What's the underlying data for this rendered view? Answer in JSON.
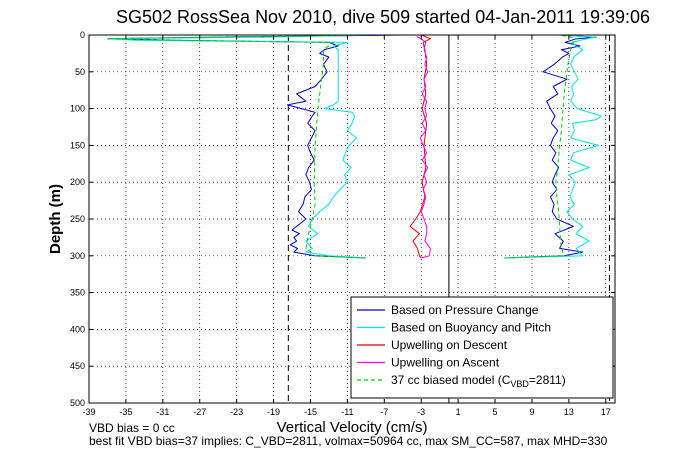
{
  "chart_data": {
    "type": "line",
    "title": "SG502 RossSea Nov 2010, dive 509 started 04-Jan-2011 19:39:06",
    "xlabel": "Vertical Velocity (cm/s)",
    "ylabel": "Depth (m)",
    "xlim": [
      -39,
      18
    ],
    "ylim": [
      0,
      500
    ],
    "y_reversed": true,
    "x_ticks": [
      -39,
      -35,
      -31,
      -27,
      -23,
      -19,
      -15,
      -11,
      -7,
      -3,
      1,
      5,
      9,
      13,
      17
    ],
    "y_ticks": [
      0,
      50,
      100,
      150,
      200,
      250,
      300,
      350,
      400,
      450,
      500
    ],
    "grid": true,
    "legend_position": "bottom-right",
    "legend": [
      {
        "label": "Based on Pressure Change",
        "color": "#0000cc",
        "style": "solid"
      },
      {
        "label": "Based on Buoyancy and Pitch",
        "color": "#00e5e5",
        "style": "solid"
      },
      {
        "label": "Upwelling on Descent",
        "color": "#e00000",
        "style": "solid"
      },
      {
        "label": "Upwelling on Ascent",
        "color": "#ff00ff",
        "style": "solid"
      },
      {
        "label_prefix": "37 cc biased model (C",
        "label_sub": "VBD",
        "label_suffix": "=2811)",
        "color": "#00cc00",
        "style": "dashed"
      }
    ],
    "reference_lines": [
      {
        "x": -17.4,
        "style": "dashed"
      },
      {
        "x": 0.0,
        "style": "solid"
      },
      {
        "x": 17.4,
        "style": "dashed"
      }
    ],
    "series": [
      {
        "key": "pressure_descent",
        "color": "#0000cc",
        "style": "solid",
        "depth": [
          0,
          3,
          5,
          7,
          10,
          15,
          20,
          25,
          30,
          40,
          50,
          60,
          70,
          80,
          90,
          95,
          100,
          105,
          110,
          120,
          130,
          140,
          150,
          160,
          170,
          180,
          190,
          200,
          210,
          220,
          230,
          240,
          250,
          260,
          265,
          270,
          275,
          280,
          285,
          290,
          295,
          300,
          303
        ],
        "x": [
          -5,
          -26,
          -37,
          -30,
          -13,
          -12,
          -13.5,
          -14,
          -13,
          -13.6,
          -13.2,
          -13.8,
          -14.5,
          -16.5,
          -15.5,
          -17.5,
          -16,
          -14.5,
          -14.8,
          -15.3,
          -14.5,
          -14.9,
          -15.3,
          -15,
          -14.6,
          -15.2,
          -15.5,
          -15.1,
          -14.9,
          -15.6,
          -15.8,
          -16.3,
          -15.5,
          -16.5,
          -17,
          -16.2,
          -16.8,
          -16.5,
          -17.2,
          -16.4,
          -16.8,
          -14.5,
          -9
        ]
      },
      {
        "key": "buoyancy_descent",
        "color": "#00e5e5",
        "style": "solid",
        "depth": [
          0,
          3,
          5,
          7,
          10,
          15,
          20,
          30,
          40,
          50,
          60,
          70,
          80,
          90,
          95,
          100,
          105,
          110,
          120,
          130,
          140,
          150,
          160,
          170,
          180,
          190,
          200,
          210,
          220,
          230,
          240,
          250,
          260,
          270,
          280,
          290,
          295,
          300,
          303
        ],
        "x": [
          -8,
          -20,
          -37,
          -34,
          -11,
          -12.5,
          -12,
          -12,
          -12,
          -12,
          -12,
          -12,
          -12,
          -12,
          -12.5,
          -13.5,
          -10.5,
          -10.2,
          -10.5,
          -11,
          -10,
          -10.8,
          -11.2,
          -11.5,
          -10.6,
          -11.3,
          -11,
          -11.8,
          -12.5,
          -13,
          -14,
          -14.8,
          -15.2,
          -14.2,
          -15.5,
          -14.8,
          -15.5,
          -13,
          -9
        ]
      },
      {
        "key": "model_descent",
        "color": "#00cc00",
        "style": "dashed",
        "depth": [
          0,
          3,
          5,
          7,
          10,
          20,
          40,
          60,
          80,
          100,
          150,
          200,
          230,
          250,
          270,
          290,
          300,
          303
        ],
        "x": [
          -9,
          -26,
          -37,
          -30,
          -12.5,
          -13.6,
          -13.6,
          -13.8,
          -14,
          -14.2,
          -14.5,
          -14.6,
          -14.5,
          -14.8,
          -15.2,
          -15.5,
          -14.5,
          -9
        ]
      },
      {
        "key": "upwelling_descent",
        "color": "#e00000",
        "style": "solid",
        "depth": [
          0,
          5,
          10,
          20,
          40,
          60,
          80,
          100,
          120,
          150,
          180,
          200,
          220,
          240,
          250,
          260,
          270,
          280,
          290,
          300,
          303
        ],
        "x": [
          -3,
          -2,
          -2.8,
          -2.6,
          -2.4,
          -2.7,
          -2.5,
          -2.9,
          -2.4,
          -2.7,
          -2.5,
          -2.9,
          -2.6,
          -3.1,
          -3.6,
          -4.2,
          -3.2,
          -3.9,
          -3.4,
          -3.2,
          -3
        ]
      },
      {
        "key": "upwelling_ascent",
        "color": "#ff00ff",
        "style": "solid",
        "depth": [
          303,
          300,
          290,
          280,
          270,
          260,
          250,
          240,
          230,
          220,
          210,
          200,
          190,
          180,
          170,
          160,
          150,
          140,
          130,
          120,
          110,
          100,
          90,
          80,
          70,
          60,
          50,
          40,
          30,
          20,
          10,
          5,
          2
        ],
        "x": [
          -3,
          -2.1,
          -2,
          -2.6,
          -2.4,
          -2.4,
          -2.7,
          -3,
          -2.7,
          -2.5,
          -2.8,
          -2.4,
          -2.7,
          -2.3,
          -2.9,
          -2.4,
          -2.8,
          -3.1,
          -2.5,
          -2.9,
          -2.4,
          -2.6,
          -2.4,
          -2.9,
          -2.5,
          -2.7,
          -2.3,
          -2.6,
          -2.4,
          -2.7,
          -2.5,
          -3,
          -3.5
        ]
      },
      {
        "key": "pressure_ascent",
        "color": "#0000cc",
        "style": "solid",
        "depth": [
          303,
          300,
          295,
          290,
          280,
          270,
          260,
          250,
          240,
          230,
          220,
          210,
          200,
          190,
          180,
          170,
          160,
          150,
          140,
          130,
          120,
          110,
          100,
          90,
          80,
          70,
          60,
          50,
          40,
          30,
          25,
          20,
          15,
          10,
          5,
          3,
          0
        ],
        "x": [
          6,
          12.5,
          14.5,
          12,
          12.4,
          11.5,
          13.5,
          11.7,
          11.2,
          11.4,
          11,
          11.7,
          11.2,
          11.5,
          11.9,
          11.2,
          11.6,
          11,
          11.3,
          11.8,
          11.1,
          11.5,
          11,
          10.6,
          11.8,
          11.3,
          12.8,
          10.2,
          11.4,
          12.3,
          13,
          12.2,
          14.2,
          12.6,
          13.8,
          16,
          12
        ]
      },
      {
        "key": "buoyancy_ascent",
        "color": "#00e5e5",
        "style": "solid",
        "depth": [
          303,
          300,
          290,
          280,
          270,
          260,
          250,
          240,
          230,
          220,
          210,
          200,
          190,
          180,
          170,
          160,
          150,
          140,
          130,
          120,
          115,
          110,
          100,
          90,
          80,
          70,
          60,
          50,
          40,
          30,
          20,
          15,
          10,
          5,
          3,
          0
        ],
        "x": [
          6,
          14.5,
          13.8,
          15.2,
          13.8,
          14.5,
          13.4,
          12.8,
          13.6,
          13.1,
          13.4,
          13.7,
          13,
          15.2,
          13.2,
          13.5,
          16.2,
          13.2,
          13.6,
          13.4,
          16,
          16.5,
          13.9,
          13.2,
          13.5,
          13.3,
          14,
          13.6,
          13.2,
          13.5,
          14.5,
          13.8,
          13.3,
          15,
          16,
          12
        ]
      },
      {
        "key": "model_ascent",
        "color": "#00cc00",
        "style": "dashed",
        "depth": [
          303,
          300,
          290,
          280,
          260,
          240,
          220,
          200,
          180,
          150,
          130,
          110,
          100,
          80,
          60,
          40,
          20,
          10,
          5,
          0
        ],
        "x": [
          6,
          12.5,
          12.2,
          12.1,
          12,
          11.9,
          11.7,
          11.6,
          11.8,
          12,
          12.2,
          12.3,
          12.4,
          12.5,
          12.7,
          12.9,
          13.2,
          13.5,
          14,
          12
        ]
      }
    ]
  },
  "notes": {
    "line1": "VBD bias = 0 cc",
    "line2": "best fit VBD bias=37 implies: C_VBD=2811, volmax=50964 cc, max SM_CC=587, max MHD=330"
  }
}
